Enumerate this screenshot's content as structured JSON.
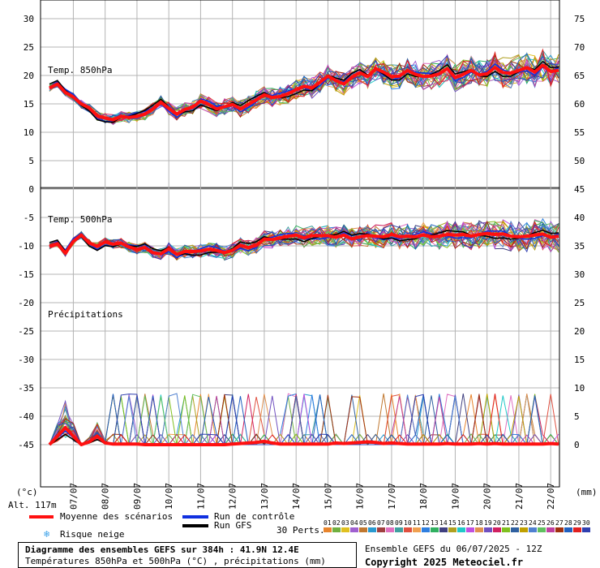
{
  "chart_data": {
    "type": "line",
    "x_dates": [
      "07/07",
      "08/07",
      "09/07",
      "10/07",
      "11/07",
      "12/07",
      "13/07",
      "14/07",
      "15/07",
      "16/07",
      "17/07",
      "18/07",
      "19/07",
      "20/07",
      "21/07",
      "22/07"
    ],
    "left_axis_ticks": [
      "30",
      "25",
      "20",
      "15",
      "10",
      "5",
      "0",
      "-5",
      "-10",
      "-15",
      "-20",
      "-25",
      "-30",
      "-35",
      "-40",
      "-45"
    ],
    "right_axis_ticks": [
      "75",
      "70",
      "65",
      "60",
      "55",
      "50",
      "45",
      "40",
      "35",
      "30",
      "25",
      "20",
      "15",
      "10",
      "5",
      "0"
    ],
    "left_unit": "(°c)",
    "right_unit": "(mm)",
    "altitude_label": "Alt. 117m",
    "panels": [
      {
        "name": "Temp. 850hPa",
        "mean_series": {
          "name": "Moyenne des scénarios",
          "x": [
            0,
            6,
            12,
            18,
            24,
            30,
            36,
            42,
            48,
            54,
            60,
            66,
            72,
            78,
            84,
            90,
            96,
            102,
            108,
            114,
            120,
            126,
            132,
            138,
            144,
            150,
            156,
            162,
            168,
            174,
            180,
            186,
            192,
            198,
            204,
            210,
            216,
            222,
            228,
            234,
            240,
            246,
            252,
            258,
            264,
            270,
            276,
            282,
            288,
            294,
            300,
            306,
            312,
            318,
            324,
            330,
            336,
            342,
            348,
            354,
            360,
            366,
            372,
            378,
            384
          ],
          "values": [
            17.8,
            18.5,
            17.0,
            16.2,
            15.0,
            14.3,
            12.9,
            12.5,
            12.2,
            12.8,
            12.6,
            12.8,
            13.2,
            14.1,
            15.3,
            14.2,
            13.2,
            14.0,
            14.4,
            15.5,
            14.9,
            14.1,
            14.5,
            14.9,
            14.1,
            14.9,
            15.7,
            16.6,
            16.1,
            16.3,
            16.8,
            17.5,
            18.1,
            17.8,
            18.8,
            19.9,
            19.1,
            18.5,
            19.7,
            20.5,
            19.8,
            21.2,
            20.6,
            19.8,
            19.9,
            20.9,
            20.2,
            19.8,
            19.9,
            20.3,
            21.2,
            19.6,
            20.2,
            20.9,
            20.1,
            20.3,
            21.4,
            20.5,
            20.4,
            20.9,
            21.4,
            20.6,
            21.8,
            20.7,
            20.9
          ]
        }
      },
      {
        "name": "Temp. 500hPa",
        "mean_series": {
          "name": "Moyenne des scénarios",
          "x": [
            0,
            6,
            12,
            18,
            24,
            30,
            36,
            42,
            48,
            54,
            60,
            66,
            72,
            78,
            84,
            90,
            96,
            102,
            108,
            114,
            120,
            126,
            132,
            138,
            144,
            150,
            156,
            162,
            168,
            174,
            180,
            186,
            192,
            198,
            204,
            210,
            216,
            222,
            228,
            234,
            240,
            246,
            252,
            258,
            264,
            270,
            276,
            282,
            288,
            294,
            300,
            306,
            312,
            318,
            324,
            330,
            336,
            342,
            348,
            354,
            360,
            366,
            372,
            378,
            384
          ],
          "values": [
            -10.1,
            -9.6,
            -11.3,
            -9.2,
            -8.1,
            -9.5,
            -10.1,
            -9.3,
            -9.7,
            -9.5,
            -10.2,
            -10.6,
            -10.3,
            -11.2,
            -11.4,
            -10.5,
            -11.5,
            -11.0,
            -11.0,
            -10.9,
            -10.6,
            -10.8,
            -11.2,
            -10.8,
            -9.9,
            -10.3,
            -9.9,
            -8.8,
            -8.9,
            -8.6,
            -8.3,
            -8.1,
            -8.6,
            -8.2,
            -8.2,
            -8.2,
            -8.5,
            -8.1,
            -8.8,
            -8.4,
            -8.2,
            -8.3,
            -8.4,
            -8.0,
            -8.4,
            -8.3,
            -8.4,
            -8.1,
            -8.4,
            -8.3,
            -8.0,
            -8.1,
            -8.0,
            -8.3,
            -8.0,
            -7.8,
            -8.0,
            -7.9,
            -8.3,
            -8.4,
            -8.3,
            -8.1,
            -7.9,
            -8.5,
            -8.3
          ]
        }
      },
      {
        "name": "Précipitations",
        "unit": "mm",
        "mean_series": {
          "name": "Moyenne des scénarios",
          "x": [
            0,
            6,
            12,
            18,
            24,
            30,
            36,
            42,
            48,
            54,
            60,
            66,
            72,
            78,
            84,
            90,
            96,
            102,
            108,
            114,
            120,
            126,
            132,
            138,
            144,
            150,
            156,
            162,
            168,
            174,
            180,
            186,
            192,
            198,
            204,
            210,
            216,
            222,
            228,
            234,
            240,
            246,
            252,
            258,
            264,
            270,
            276,
            282,
            288,
            294,
            300,
            306,
            312,
            318,
            324,
            330,
            336,
            342,
            348,
            354,
            360,
            366,
            372,
            378,
            384
          ],
          "values": [
            0,
            1.5,
            3.0,
            1.5,
            0,
            0.5,
            1.5,
            0.3,
            0.1,
            0.1,
            0.1,
            0.1,
            0,
            0,
            0,
            0,
            0,
            0,
            0,
            0,
            0,
            0,
            0,
            0.1,
            0.2,
            0.3,
            0.4,
            0.6,
            0.3,
            0.1,
            0.1,
            0.1,
            0.1,
            0.1,
            0.1,
            0.1,
            0.3,
            0.2,
            0.3,
            0.4,
            0.5,
            0.4,
            0.2,
            0.3,
            0.2,
            0.1,
            0.1,
            0.1,
            0.1,
            0.1,
            0.2,
            0.1,
            0.1,
            0.1,
            0.2,
            0.1,
            0.2,
            0.1,
            0.1,
            0.1,
            0.1,
            0.1,
            0.1,
            0.2,
            0.1
          ]
        }
      }
    ],
    "legend": {
      "mean": "Moyenne des scénarios",
      "control": "Run de contrôle",
      "gfs": "Run GFS",
      "snow": "Risque neige",
      "perturbations_label": "30 Perts.",
      "perturbation_ids": [
        "01",
        "02",
        "03",
        "04",
        "05",
        "06",
        "07",
        "08",
        "09",
        "10",
        "11",
        "12",
        "13",
        "14",
        "15",
        "16",
        "17",
        "18",
        "19",
        "20",
        "21",
        "22",
        "23",
        "24",
        "25",
        "26",
        "27",
        "28",
        "29",
        "30"
      ],
      "perturbation_colors": [
        "#e8842c",
        "#70b040",
        "#e0c020",
        "#a060d0",
        "#c07830",
        "#2a9ad0",
        "#a04040",
        "#e070c0",
        "#40a0a0",
        "#e05040",
        "#f0a050",
        "#2f7fe0",
        "#30b060",
        "#404080",
        "#b0a020",
        "#20c8c8",
        "#c050e0",
        "#e09050",
        "#7050c0",
        "#d02060",
        "#80c020",
        "#3060a0",
        "#c0a000",
        "#5080d0",
        "#60c060",
        "#c040a0",
        "#a03010",
        "#2060c0",
        "#e02020",
        "#3040b0"
      ]
    },
    "colors": {
      "mean": "#ff1010",
      "control": "#1030e0",
      "gfs": "#000000"
    }
  },
  "footer": {
    "title": "Diagramme des ensembles GEFS sur 384h : 41.9N 12.4E",
    "subtitle": "Températures 850hPa et 500hPa (°C) , précipitations (mm)",
    "run_info": "Ensemble GEFS du 06/07/2025 - 12Z",
    "copyright": "Copyright 2025 Meteociel.fr"
  }
}
